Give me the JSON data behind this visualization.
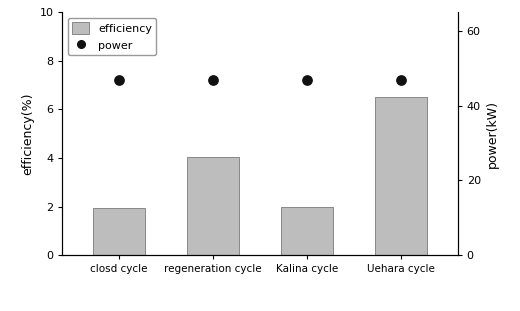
{
  "categories": [
    "closd cycle",
    "regeneration cycle",
    "Kalina cycle",
    "Uehara cycle"
  ],
  "efficiency_values": [
    1.95,
    4.05,
    2.0,
    6.5
  ],
  "power_values": [
    46.8,
    46.8,
    46.8,
    46.8
  ],
  "bar_color": "#bdbdbd",
  "bar_edgecolor": "#888888",
  "dot_color": "#111111",
  "dot_size": 45,
  "left_ylabel": "efficiency(%)",
  "right_ylabel": "power(kW)",
  "ylim_left": [
    0,
    10
  ],
  "ylim_right": [
    0,
    65
  ],
  "yticks_left": [
    0,
    2,
    4,
    6,
    8,
    10
  ],
  "yticks_right": [
    0,
    20,
    40,
    60
  ],
  "legend_efficiency": "efficiency",
  "legend_power": "power",
  "background_color": "#ffffff",
  "figsize": [
    5.2,
    3.11
  ],
  "dpi": 100
}
